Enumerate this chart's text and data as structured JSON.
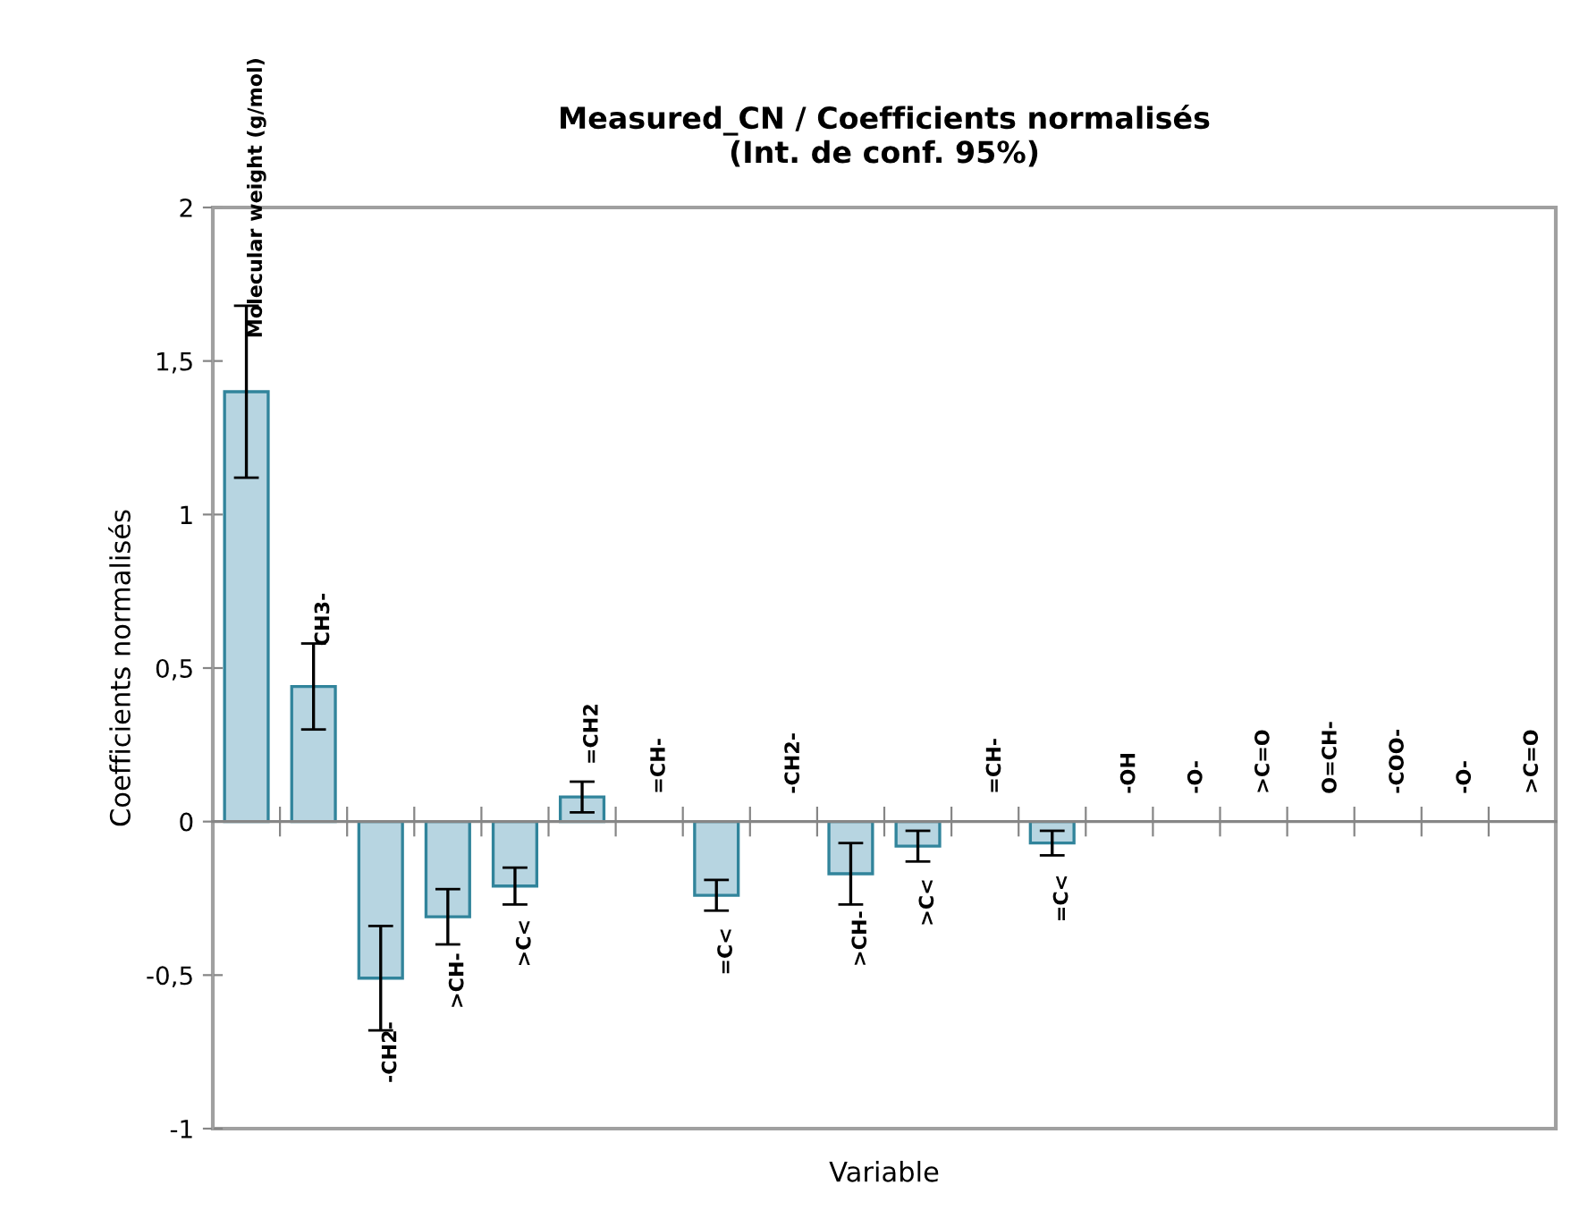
{
  "chart_data": {
    "type": "bar",
    "title": "Measured_CN / Coefficients normalisés\n(Int. de conf. 95%)",
    "xlabel": "Variable",
    "ylabel": "Coefficients normalisés",
    "categories": [
      "Molecular weight (g/mol)",
      "CH3-",
      "-CH2-",
      ">CH-",
      ">C<",
      "=CH2",
      "=CH-",
      "=C<",
      "-CH2-",
      ">CH-",
      ">C<",
      "=CH-",
      "=C<",
      "-OH",
      "-O-",
      ">C=O",
      "O=CH-",
      "-COO-",
      "-O-",
      ">C=O"
    ],
    "series": [
      {
        "color": "#b7d5e1",
        "values": [
          1.4,
          0.44,
          -0.51,
          -0.31,
          -0.21,
          0.08,
          null,
          -0.24,
          null,
          -0.17,
          -0.08,
          null,
          -0.07,
          null,
          null,
          null,
          null,
          null,
          null,
          null
        ],
        "errors": [
          0.28,
          0.14,
          0.17,
          0.09,
          0.06,
          0.05,
          null,
          0.05,
          null,
          0.1,
          0.05,
          null,
          0.04,
          null,
          null,
          null,
          null,
          null,
          null,
          null
        ]
      }
    ],
    "ylim": [
      -1,
      2
    ],
    "yticks": [
      -1,
      {
        "value": -0.5,
        "label": "-0,5"
      },
      0,
      {
        "value": 0.5,
        "label": "0,5"
      },
      1,
      {
        "value": 1.5,
        "label": "1,5"
      },
      2
    ],
    "grid": false,
    "legend": false
  }
}
